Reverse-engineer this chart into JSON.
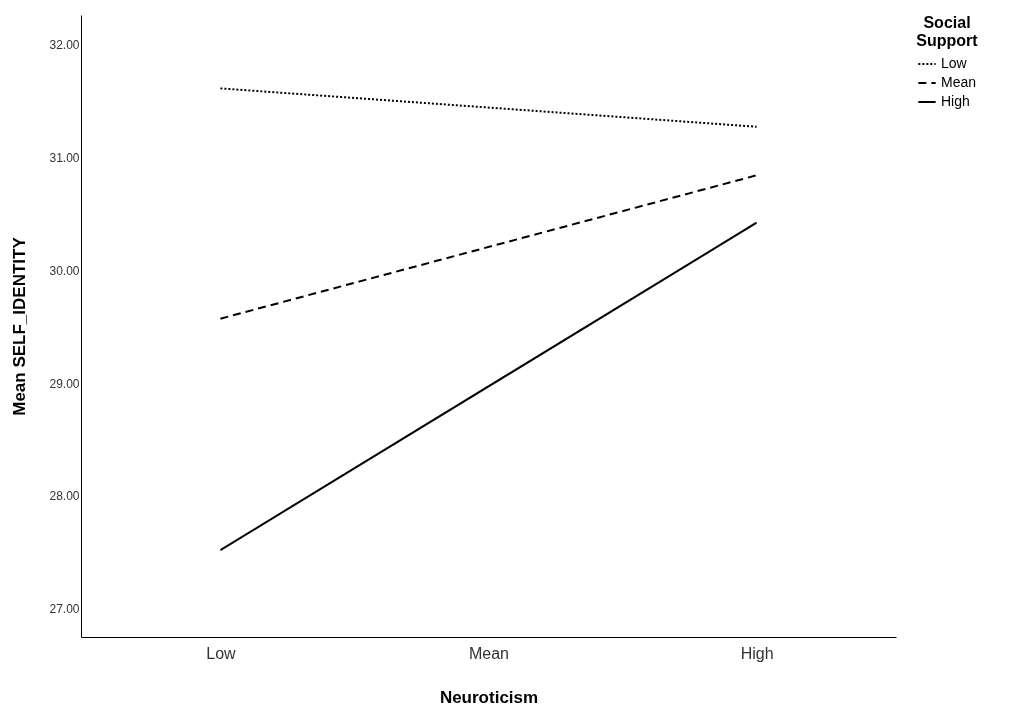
{
  "chart_data": {
    "type": "line",
    "xlabel": "Neuroticism",
    "ylabel": "Mean SELF_IDENTITY",
    "legend_title": "Social Support",
    "legend": "top right",
    "grid": false,
    "categories": [
      "Low",
      "Mean",
      "High"
    ],
    "ylim": [
      26.75,
      32.26
    ],
    "yticks": [
      {
        "value": 27,
        "label": "27.00"
      },
      {
        "value": 28,
        "label": "28.00"
      },
      {
        "value": 29,
        "label": "29.00"
      },
      {
        "value": 30,
        "label": "30.00"
      },
      {
        "value": 31,
        "label": "31.00"
      },
      {
        "value": 32,
        "label": "32.00"
      }
    ],
    "series": [
      {
        "name": "Low",
        "color": "#000000",
        "line_style": "dotted",
        "values": [
          31.61,
          null,
          31.27
        ]
      },
      {
        "name": "Mean",
        "color": "#000000",
        "line_style": "dashed",
        "values": [
          29.57,
          null,
          30.84
        ]
      },
      {
        "name": "High",
        "color": "#000000",
        "line_style": "solid",
        "values": [
          27.52,
          null,
          30.42
        ]
      }
    ]
  }
}
